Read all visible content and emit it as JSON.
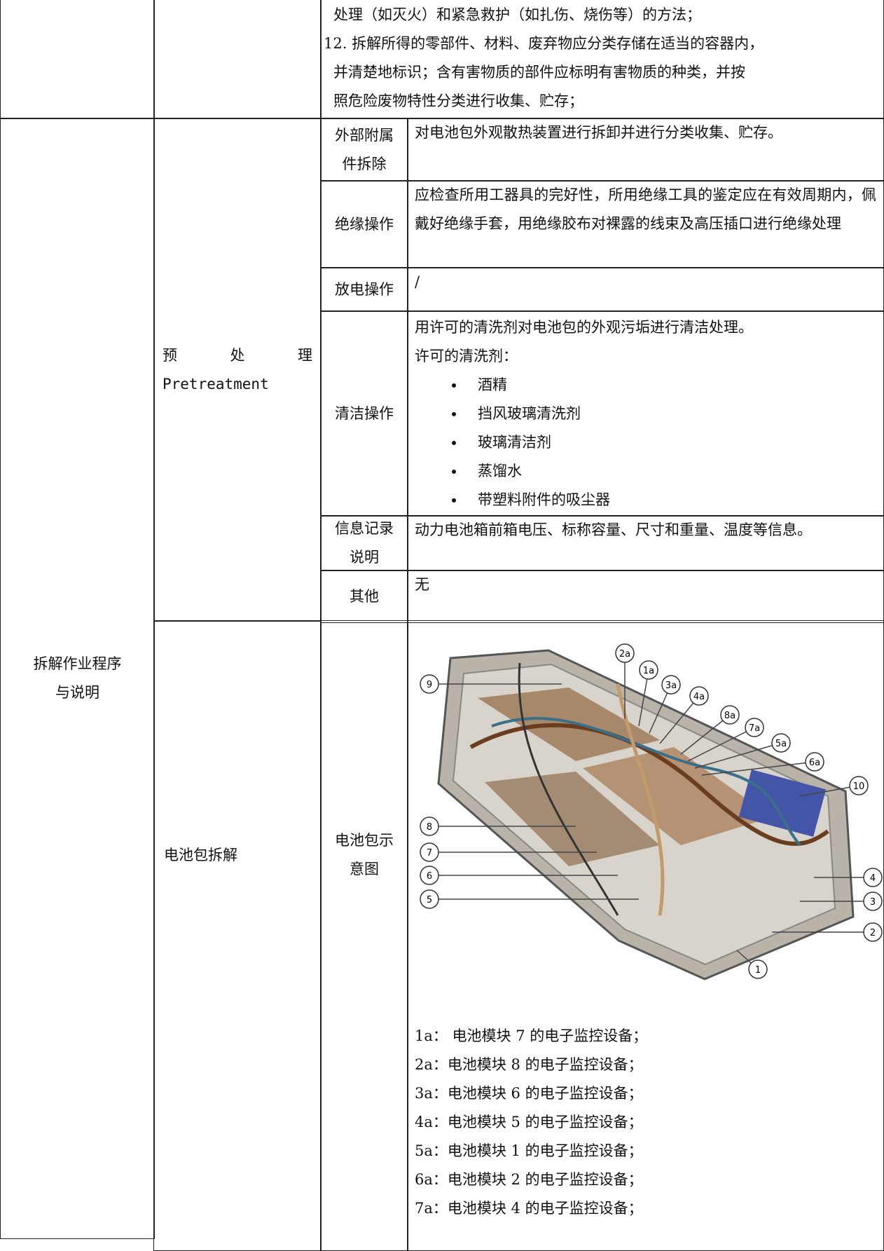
{
  "table": {
    "top_row": {
      "lines": [
        "处理（如灭火）和紧急救护（如扎伤、烧伤等）的方法；",
        "12. 拆解所得的零部件、材料、废弃物应分类存储在适当的容器内，",
        "并清楚地标识；含有害物质的部件应标明有害物质的种类，并按",
        "照危险废物特性分类进行收集、贮存；"
      ]
    },
    "section": "拆解作业程序与说明",
    "pretreatment": {
      "label": "预　处　理",
      "label_en": "Pretreatment",
      "rows": [
        {
          "step": "外部附属件拆除",
          "content": "对电池包外观散热装置进行拆卸并进行分类收集、贮存。"
        },
        {
          "step": "绝缘操作",
          "content": "应检查所用工器具的完好性，所用绝缘工具的鉴定应在有效周期内，佩戴好绝缘手套，用绝缘胶布对裸露的线束及高压插口进行绝缘处理"
        },
        {
          "step": "放电操作",
          "content": "/"
        },
        {
          "step": "清洁操作",
          "content": "用许可的清洗剂对电池包的外观污垢进行清洁处理。",
          "subtitle": "许可的清洗剂：",
          "bullets": [
            "酒精",
            "挡风玻璃清洗剂",
            "玻璃清洁剂",
            "蒸馏水",
            "带塑料附件的吸尘器"
          ]
        },
        {
          "step": "信息记录说明",
          "content": "动力电池箱前箱电压、标称容量、尺寸和重量、温度等信息。"
        },
        {
          "step": "其他",
          "content": "无"
        }
      ]
    },
    "battery": {
      "group": "电池包拆解",
      "step": "电池包示意图",
      "callouts": [
        "9",
        "2a",
        "1a",
        "3a",
        "4a",
        "8a",
        "7a",
        "5a",
        "6a",
        "10",
        "8",
        "7",
        "6",
        "5",
        "4",
        "3",
        "2",
        "1"
      ],
      "legend": [
        "1a： 电池模块 7 的电子监控设备；",
        "2a：电池模块 8 的电子监控设备；",
        "3a：电池模块 6 的电子监控设备；",
        "4a：电池模块 5 的电子监控设备；",
        "5a：电池模块 1 的电子监控设备；",
        "6a：电池模块 2 的电子监控设备；",
        "7a：电池模块 4 的电子监控设备；"
      ]
    }
  }
}
